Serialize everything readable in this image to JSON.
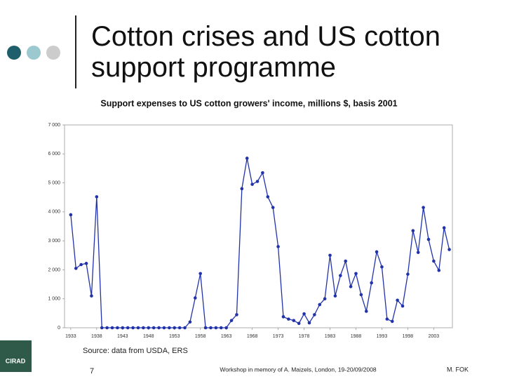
{
  "slide": {
    "title": "Cotton crises and US cotton support programme",
    "logo": "CIRAD",
    "source": "Source: data from USDA, ERS",
    "page_number": "7",
    "footer": "Workshop in memory of A. Maizels, London, 19-20/09/2008",
    "author": "M. FOK"
  },
  "chart_data": {
    "type": "line",
    "title": "Support expenses to US cotton growers' income, millions $, basis 2001",
    "color": "#2233aa",
    "x": [
      1933,
      1934,
      1935,
      1936,
      1937,
      1938,
      1939,
      1940,
      1941,
      1942,
      1943,
      1944,
      1945,
      1946,
      1947,
      1948,
      1949,
      1950,
      1951,
      1952,
      1953,
      1954,
      1955,
      1956,
      1957,
      1958,
      1959,
      1960,
      1961,
      1962,
      1963,
      1964,
      1965,
      1966,
      1967,
      1968,
      1969,
      1970,
      1971,
      1972,
      1973,
      1974,
      1975,
      1976,
      1977,
      1978,
      1979,
      1980,
      1981,
      1982,
      1983,
      1984,
      1985,
      1986,
      1987,
      1988,
      1989,
      1990,
      1991,
      1992,
      1993,
      1994,
      1995,
      1996,
      1997,
      1998,
      1999,
      2000,
      2001,
      2002,
      2003,
      2004,
      2005,
      2006
    ],
    "values": [
      3900,
      2050,
      2180,
      2220,
      1100,
      4520,
      0,
      0,
      0,
      0,
      0,
      0,
      0,
      0,
      0,
      0,
      0,
      0,
      0,
      0,
      0,
      0,
      0,
      200,
      1030,
      1870,
      0,
      0,
      0,
      0,
      0,
      250,
      450,
      4800,
      5850,
      4950,
      5050,
      5350,
      4520,
      4150,
      2800,
      380,
      300,
      250,
      150,
      480,
      170,
      450,
      800,
      1000,
      2500,
      1100,
      1800,
      2300,
      1420,
      1870,
      1140,
      570,
      1550,
      2620,
      2100,
      300,
      220,
      950,
      750,
      1850,
      3350,
      2600,
      4150,
      3050,
      2300,
      1980,
      3450,
      2700
    ],
    "xlim": [
      1931.8,
      2006.6
    ],
    "ylim": [
      0,
      7000
    ],
    "xticks": [
      1933,
      1938,
      1943,
      1948,
      1953,
      1958,
      1963,
      1968,
      1973,
      1978,
      1983,
      1988,
      1993,
      1998,
      2003
    ],
    "yticks": [
      0,
      {
        "value": 1000,
        "label": "1 000"
      },
      {
        "value": 2000,
        "label": "2 000"
      },
      {
        "value": 3000,
        "label": "3 000"
      },
      {
        "value": 4000,
        "label": "4 000"
      },
      {
        "value": 5000,
        "label": "5 000"
      },
      {
        "value": 6000,
        "label": "6 000"
      },
      {
        "value": 7000,
        "label": "7 000"
      }
    ]
  }
}
